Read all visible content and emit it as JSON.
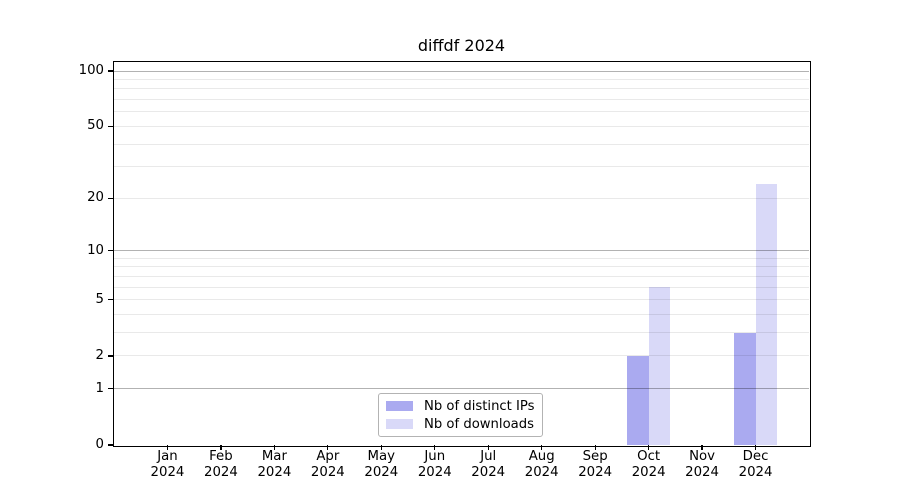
{
  "title": "diffdf 2024",
  "colors": {
    "distinct_ips": "#aaaaf0",
    "downloads": "#d9d9f8",
    "spine": "#000000",
    "major_grid": "#b3b3b3",
    "minor_grid": "#e8e8e8"
  },
  "legend": {
    "items": [
      {
        "label": "Nb of distinct IPs",
        "color": "#aaaaf0"
      },
      {
        "label": "Nb of downloads",
        "color": "#d9d9f8"
      }
    ]
  },
  "chart_data": {
    "type": "bar",
    "title": "diffdf 2024",
    "categories": [
      "Jan 2024",
      "Feb 2024",
      "Mar 2024",
      "Apr 2024",
      "May 2024",
      "Jun 2024",
      "Jul 2024",
      "Aug 2024",
      "Sep 2024",
      "Oct 2024",
      "Nov 2024",
      "Dec 2024"
    ],
    "series": [
      {
        "name": "Nb of distinct IPs",
        "values": [
          0,
          0,
          0,
          0,
          0,
          0,
          0,
          0,
          0,
          2,
          0,
          3
        ]
      },
      {
        "name": "Nb of downloads",
        "values": [
          0,
          0,
          0,
          0,
          0,
          0,
          0,
          0,
          0,
          6,
          0,
          24
        ]
      }
    ],
    "xlabel": "",
    "ylabel": "",
    "yscale": "log1p",
    "ylim": [
      0,
      112
    ],
    "ytick_values": [
      100,
      50,
      20,
      10,
      5,
      2,
      1,
      0
    ],
    "ytick_labels": [
      "100",
      "50",
      "20",
      "10",
      "5",
      "2",
      "1",
      "0"
    ],
    "major_grid_values": [
      1,
      10,
      100
    ],
    "minor_grid_values": [
      2,
      3,
      4,
      5,
      6,
      7,
      8,
      9,
      20,
      30,
      40,
      50,
      60,
      70,
      80,
      90
    ],
    "grid": true,
    "legend_position": "lower center",
    "bar_layout": "grouped-pair"
  }
}
